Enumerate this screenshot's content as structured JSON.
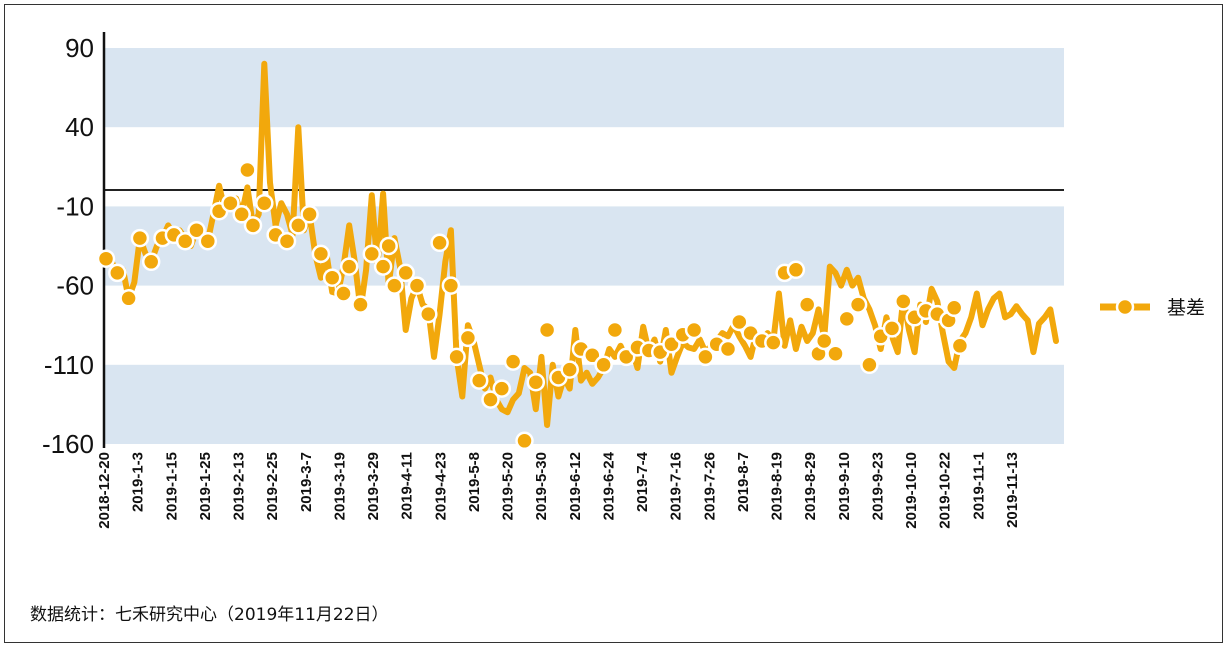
{
  "chart_data": {
    "type": "line",
    "title": "",
    "xlabel": "",
    "ylabel": "",
    "ylim": [
      -160,
      90
    ],
    "yticks": [
      90,
      40,
      -10,
      -60,
      -110,
      -160
    ],
    "grid": "alternating horizontal bands",
    "legend_position": "right",
    "xtick_labels": [
      "2018-12-20",
      "2019-1-3",
      "2019-1-15",
      "2019-1-25",
      "2019-2-13",
      "2019-2-25",
      "2019-3-7",
      "2019-3-19",
      "2019-3-29",
      "2019-4-11",
      "2019-4-23",
      "2019-5-8",
      "2019-5-20",
      "2019-5-30",
      "2019-6-12",
      "2019-6-24",
      "2019-7-4",
      "2019-7-16",
      "2019-7-26",
      "2019-8-7",
      "2019-8-19",
      "2019-8-29",
      "2019-9-10",
      "2019-9-23",
      "2019-10-10",
      "2019-10-22",
      "2019-11-1",
      "2019-11-13"
    ],
    "series": [
      {
        "name": "基差",
        "color": "#f2a80c",
        "values": [
          -43,
          -45,
          -52,
          -50,
          -68,
          -58,
          -30,
          -40,
          -45,
          -35,
          -30,
          -22,
          -28,
          -25,
          -30,
          -35,
          -25,
          -28,
          -32,
          -15,
          3,
          -12,
          -8,
          -5,
          -15,
          2,
          -22,
          -15,
          80,
          5,
          -22,
          -8,
          -15,
          -28,
          40,
          -25,
          -15,
          -40,
          -55,
          -40,
          -64,
          -65,
          -48,
          -22,
          -45,
          -75,
          -50,
          -3,
          -48,
          -2,
          -60,
          -30,
          -48,
          -88,
          -68,
          -60,
          -72,
          -75,
          -105,
          -78,
          -45,
          -25,
          -105,
          -130,
          -85,
          -95,
          -110,
          -125,
          -118,
          -132,
          -138,
          -140,
          -132,
          -128,
          -112,
          -115,
          -138,
          -105,
          -148,
          -110,
          -130,
          -118,
          -125,
          -88,
          -120,
          -115,
          -122,
          -118,
          -112,
          -100,
          -105,
          -98,
          -106,
          -100,
          -112,
          -86,
          -102,
          -94,
          -108,
          -88,
          -115,
          -105,
          -96,
          -99,
          -100,
          -94,
          -102,
          -98,
          -95,
          -90,
          -92,
          -85,
          -92,
          -98,
          -105,
          -90,
          -94,
          -90,
          -95,
          -65,
          -98,
          -82,
          -100,
          -86,
          -95,
          -90,
          -75,
          -93,
          -48,
          -52,
          -60,
          -50,
          -60,
          -55,
          -68,
          -75,
          -85,
          -100,
          -80,
          -92,
          -102,
          -68,
          -88,
          -102,
          -72,
          -83,
          -62,
          -70,
          -90,
          -108,
          -112,
          -95,
          -90,
          -80,
          -65,
          -85,
          -75,
          -68,
          -65,
          -80,
          -78,
          -73,
          -78,
          -82,
          -102,
          -84,
          -80,
          -75,
          -95
        ]
      }
    ],
    "markers": [
      [
        0,
        -43
      ],
      [
        2,
        -52
      ],
      [
        4,
        -68
      ],
      [
        6,
        -30
      ],
      [
        8,
        -45
      ],
      [
        10,
        -30
      ],
      [
        12,
        -28
      ],
      [
        14,
        -32
      ],
      [
        16,
        -25
      ],
      [
        18,
        -32
      ],
      [
        20,
        -13
      ],
      [
        22,
        -8
      ],
      [
        24,
        -15
      ],
      [
        25,
        13
      ],
      [
        26,
        -22
      ],
      [
        28,
        -8
      ],
      [
        30,
        -28
      ],
      [
        32,
        -32
      ],
      [
        34,
        -22
      ],
      [
        36,
        -15
      ],
      [
        38,
        -40
      ],
      [
        40,
        -55
      ],
      [
        42,
        -65
      ],
      [
        43,
        -48
      ],
      [
        45,
        -72
      ],
      [
        47,
        -40
      ],
      [
        49,
        -48
      ],
      [
        50,
        -35
      ],
      [
        51,
        -60
      ],
      [
        53,
        -52
      ],
      [
        55,
        -60
      ],
      [
        57,
        -78
      ],
      [
        59,
        -33
      ],
      [
        61,
        -60
      ],
      [
        62,
        -105
      ],
      [
        64,
        -93
      ],
      [
        66,
        -120
      ],
      [
        68,
        -132
      ],
      [
        70,
        -125
      ],
      [
        72,
        -108
      ],
      [
        74,
        -158
      ],
      [
        76,
        -121
      ],
      [
        78,
        -88
      ],
      [
        80,
        -118
      ],
      [
        82,
        -113
      ],
      [
        84,
        -100
      ],
      [
        86,
        -104
      ],
      [
        88,
        -110
      ],
      [
        90,
        -88
      ],
      [
        92,
        -105
      ],
      [
        94,
        -99
      ],
      [
        96,
        -101
      ],
      [
        98,
        -102
      ],
      [
        100,
        -97
      ],
      [
        102,
        -91
      ],
      [
        104,
        -88
      ],
      [
        106,
        -105
      ],
      [
        108,
        -97
      ],
      [
        110,
        -100
      ],
      [
        112,
        -83
      ],
      [
        114,
        -90
      ],
      [
        116,
        -95
      ],
      [
        118,
        -96
      ],
      [
        120,
        -52
      ],
      [
        122,
        -50
      ],
      [
        124,
        -72
      ],
      [
        126,
        -103
      ],
      [
        127,
        -95
      ],
      [
        129,
        -103
      ],
      [
        131,
        -81
      ],
      [
        133,
        -72
      ],
      [
        135,
        -110
      ],
      [
        137,
        -92
      ],
      [
        139,
        -87
      ],
      [
        141,
        -70
      ],
      [
        143,
        -80
      ],
      [
        145,
        -76
      ],
      [
        147,
        -78
      ],
      [
        149,
        -82
      ],
      [
        150,
        -74
      ],
      [
        151,
        -98
      ]
    ]
  },
  "legend": {
    "label": "基差"
  },
  "source_text": "数据统计：七禾研究中心（2019年11月22日）"
}
